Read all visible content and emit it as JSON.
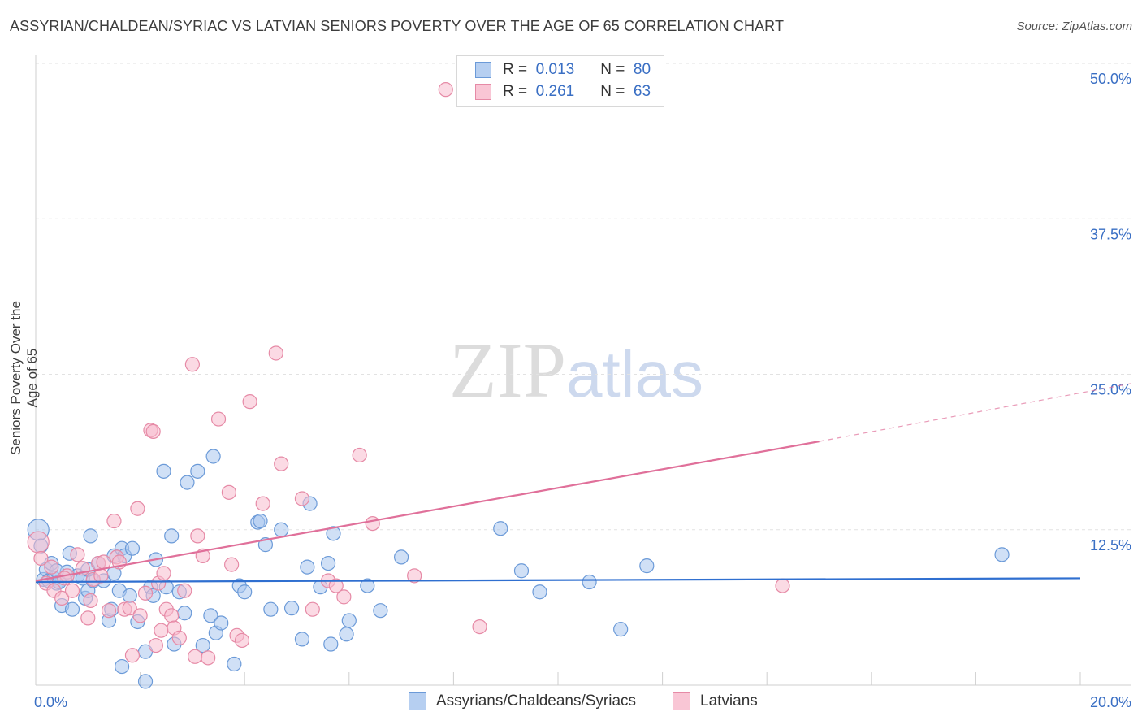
{
  "title": "ASSYRIAN/CHALDEAN/SYRIAC VS LATVIAN SENIORS POVERTY OVER THE AGE OF 65 CORRELATION CHART",
  "source": "Source: ZipAtlas.com",
  "watermark": {
    "zip": "ZIP",
    "atlas": "atlas"
  },
  "legend": {
    "row1": {
      "r_label": "R =",
      "r_value": "0.013",
      "n_label": "N =",
      "n_value": "80"
    },
    "row2": {
      "r_label": "R =",
      "r_value": "0.261",
      "n_label": "N =",
      "n_value": "63"
    }
  },
  "colors": {
    "blue_fill": "#a9c6ee",
    "blue_stroke": "#6b9ad8",
    "blue_line": "#2f6fd0",
    "pink_fill": "#f7bccd",
    "pink_stroke": "#e68aa6",
    "pink_line": "#e0709a",
    "tick_color": "#3a6fc4"
  },
  "chart_data": {
    "type": "scatter",
    "title": "ASSYRIAN/CHALDEAN/SYRIAC VS LATVIAN SENIORS POVERTY OVER THE AGE OF 65 CORRELATION CHART",
    "xlabel": "",
    "ylabel": "Seniors Poverty Over the Age of 65",
    "xlim": [
      0,
      20
    ],
    "ylim": [
      0,
      50
    ],
    "x_tick_labels": [
      "0.0%",
      "20.0%"
    ],
    "y_ticks": [
      12.5,
      25.0,
      37.5,
      50.0
    ],
    "y_tick_labels": [
      "12.5%",
      "25.0%",
      "37.5%",
      "50.0%"
    ],
    "grid": true,
    "series": [
      {
        "name": "Assyrians/Chaldeans/Syriacs",
        "r": 0.013,
        "n": 80,
        "trend": {
          "x0": 0,
          "y0": 8.3,
          "x1": 20,
          "y1": 8.6
        },
        "points": [
          [
            0.05,
            12.5
          ],
          [
            0.1,
            11.2
          ],
          [
            0.15,
            8.5
          ],
          [
            0.2,
            9.3
          ],
          [
            0.25,
            8.4
          ],
          [
            0.3,
            9.8
          ],
          [
            0.35,
            8.6
          ],
          [
            0.4,
            8.2
          ],
          [
            0.45,
            8.3
          ],
          [
            0.5,
            6.4
          ],
          [
            0.6,
            9.1
          ],
          [
            0.65,
            10.6
          ],
          [
            0.7,
            6.1
          ],
          [
            0.8,
            8.8
          ],
          [
            0.9,
            8.6
          ],
          [
            0.95,
            7.0
          ],
          [
            1.0,
            7.6
          ],
          [
            1.05,
            12.0
          ],
          [
            1.1,
            8.4
          ],
          [
            1.2,
            9.8
          ],
          [
            1.3,
            8.4
          ],
          [
            1.4,
            5.2
          ],
          [
            1.45,
            6.1
          ],
          [
            1.5,
            10.4
          ],
          [
            1.6,
            7.6
          ],
          [
            1.65,
            11.0
          ],
          [
            1.7,
            10.4
          ],
          [
            1.8,
            7.2
          ],
          [
            1.85,
            11.0
          ],
          [
            1.95,
            5.1
          ],
          [
            2.1,
            2.7
          ],
          [
            2.2,
            7.9
          ],
          [
            2.3,
            10.1
          ],
          [
            2.45,
            17.2
          ],
          [
            2.5,
            7.9
          ],
          [
            2.6,
            12.0
          ],
          [
            2.65,
            3.3
          ],
          [
            2.75,
            7.5
          ],
          [
            2.85,
            5.8
          ],
          [
            2.9,
            16.3
          ],
          [
            3.2,
            3.2
          ],
          [
            3.1,
            17.2
          ],
          [
            3.35,
            5.6
          ],
          [
            3.4,
            18.4
          ],
          [
            3.45,
            4.2
          ],
          [
            3.55,
            5.0
          ],
          [
            3.8,
            1.7
          ],
          [
            3.9,
            8.0
          ],
          [
            4.0,
            7.5
          ],
          [
            4.25,
            13.1
          ],
          [
            4.3,
            13.2
          ],
          [
            4.4,
            11.3
          ],
          [
            4.5,
            6.1
          ],
          [
            4.7,
            12.5
          ],
          [
            4.9,
            6.2
          ],
          [
            5.1,
            3.7
          ],
          [
            5.2,
            9.5
          ],
          [
            5.25,
            14.6
          ],
          [
            5.45,
            7.9
          ],
          [
            5.6,
            9.8
          ],
          [
            5.65,
            3.3
          ],
          [
            5.7,
            12.2
          ],
          [
            5.95,
            4.1
          ],
          [
            6.0,
            5.2
          ],
          [
            6.35,
            8.0
          ],
          [
            6.6,
            6.0
          ],
          [
            7.0,
            10.3
          ],
          [
            8.9,
            12.6
          ],
          [
            9.3,
            9.2
          ],
          [
            9.65,
            7.5
          ],
          [
            10.6,
            8.3
          ],
          [
            11.2,
            4.5
          ],
          [
            11.7,
            9.6
          ],
          [
            18.5,
            10.5
          ],
          [
            1.65,
            1.5
          ],
          [
            2.1,
            0.3
          ],
          [
            0.4,
            9.2
          ],
          [
            1.0,
            9.3
          ],
          [
            1.5,
            9.0
          ],
          [
            2.25,
            7.2
          ]
        ]
      },
      {
        "name": "Latvians",
        "r": 0.261,
        "n": 63,
        "trend": {
          "x0": 0,
          "y0": 8.4,
          "x1": 15.0,
          "y1": 19.6,
          "dash_to_x": 20,
          "dash_to_y": 23.5
        },
        "points": [
          [
            0.05,
            11.5
          ],
          [
            0.1,
            10.2
          ],
          [
            0.2,
            8.2
          ],
          [
            0.3,
            9.5
          ],
          [
            0.35,
            7.6
          ],
          [
            0.5,
            7.0
          ],
          [
            0.6,
            8.8
          ],
          [
            0.7,
            7.6
          ],
          [
            0.8,
            10.5
          ],
          [
            0.9,
            9.4
          ],
          [
            1.0,
            5.4
          ],
          [
            1.05,
            6.8
          ],
          [
            1.1,
            8.5
          ],
          [
            1.2,
            9.8
          ],
          [
            1.3,
            9.9
          ],
          [
            1.5,
            13.2
          ],
          [
            1.55,
            10.3
          ],
          [
            1.6,
            9.9
          ],
          [
            1.7,
            6.1
          ],
          [
            1.8,
            6.2
          ],
          [
            1.85,
            2.4
          ],
          [
            1.95,
            14.2
          ],
          [
            2.0,
            5.6
          ],
          [
            2.1,
            7.4
          ],
          [
            2.2,
            20.5
          ],
          [
            2.25,
            20.4
          ],
          [
            2.3,
            3.2
          ],
          [
            2.35,
            8.2
          ],
          [
            2.4,
            4.4
          ],
          [
            2.5,
            6.1
          ],
          [
            2.6,
            5.6
          ],
          [
            2.65,
            4.6
          ],
          [
            2.75,
            3.8
          ],
          [
            2.85,
            7.6
          ],
          [
            3.0,
            25.8
          ],
          [
            3.05,
            2.3
          ],
          [
            3.1,
            12.0
          ],
          [
            3.2,
            10.4
          ],
          [
            3.3,
            2.2
          ],
          [
            3.5,
            21.4
          ],
          [
            3.7,
            15.5
          ],
          [
            3.75,
            9.7
          ],
          [
            3.85,
            4.0
          ],
          [
            3.95,
            3.6
          ],
          [
            4.1,
            22.8
          ],
          [
            4.35,
            14.6
          ],
          [
            4.6,
            26.7
          ],
          [
            4.7,
            17.8
          ],
          [
            5.1,
            15.0
          ],
          [
            5.3,
            6.1
          ],
          [
            5.6,
            8.4
          ],
          [
            5.75,
            8.0
          ],
          [
            5.9,
            7.1
          ],
          [
            6.2,
            18.5
          ],
          [
            6.45,
            13.0
          ],
          [
            7.25,
            8.8
          ],
          [
            7.85,
            47.9
          ],
          [
            8.5,
            4.7
          ],
          [
            14.3,
            8.0
          ],
          [
            1.25,
            8.8
          ],
          [
            0.55,
            8.6
          ],
          [
            2.45,
            9.0
          ],
          [
            1.4,
            6.0
          ]
        ]
      }
    ]
  },
  "bottom_legend": {
    "item1": "Assyrians/Chaldeans/Syriacs",
    "item2": "Latvians"
  }
}
